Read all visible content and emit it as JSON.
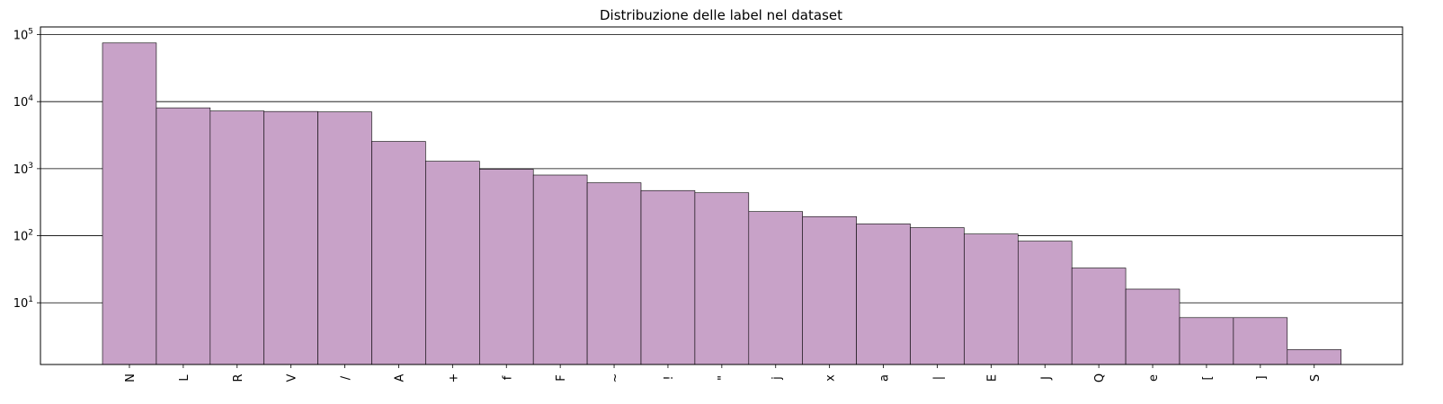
{
  "chart_data": {
    "type": "bar",
    "title": "Distribuzione delle label nel dataset",
    "xlabel": "",
    "ylabel": "",
    "yscale": "log",
    "ylim": [
      1.2,
      130000
    ],
    "y_ticks": [
      {
        "value": 10,
        "base": "10",
        "exp": "1"
      },
      {
        "value": 100,
        "base": "10",
        "exp": "2"
      },
      {
        "value": 1000,
        "base": "10",
        "exp": "3"
      },
      {
        "value": 10000,
        "base": "10",
        "exp": "4"
      },
      {
        "value": 100000,
        "base": "10",
        "exp": "5"
      }
    ],
    "grid": {
      "axis": "y",
      "enabled": true
    },
    "bar_color": "#c8a2c8",
    "edge_color": "#000000",
    "categories": [
      "N",
      "L",
      "R",
      "V",
      "/",
      "A",
      "+",
      "f",
      "F",
      "~",
      "!",
      "\"",
      "j",
      "x",
      "a",
      "|",
      "E",
      "J",
      "Q",
      "e",
      "[",
      "]",
      "S"
    ],
    "values": [
      75052,
      8075,
      7259,
      7130,
      7028,
      2546,
      1291,
      982,
      803,
      616,
      472,
      437,
      229,
      193,
      150,
      132,
      106,
      83,
      33,
      16,
      6,
      6,
      2
    ]
  }
}
